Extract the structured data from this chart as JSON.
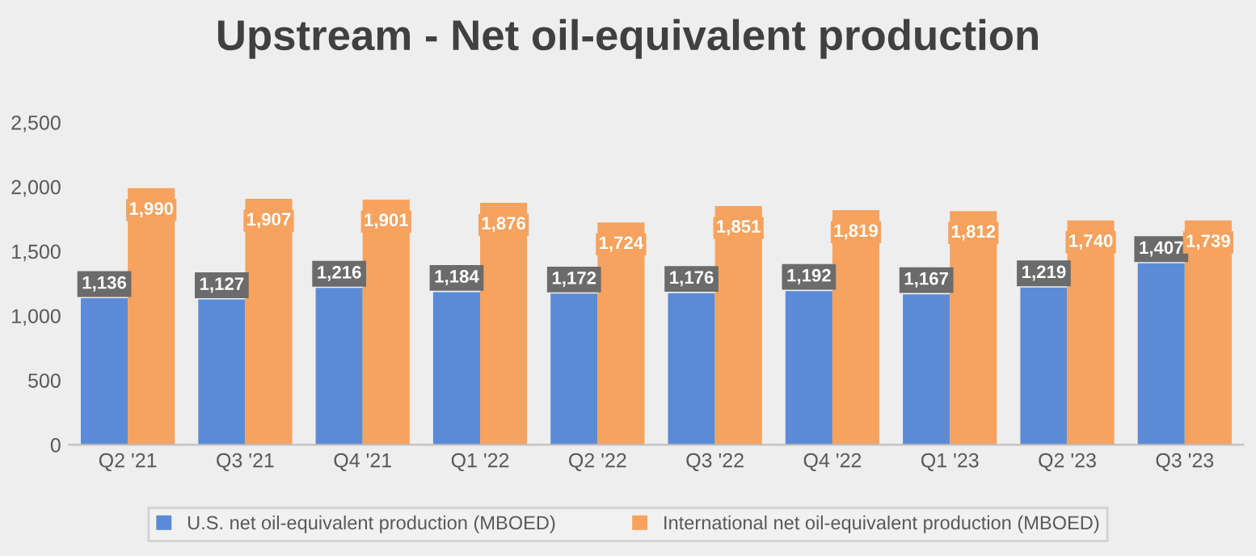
{
  "chart_data": {
    "type": "bar",
    "title": "Upstream - Net oil-equivalent production",
    "categories": [
      "Q2 '21",
      "Q3 '21",
      "Q4 '21",
      "Q1 '22",
      "Q2 '22",
      "Q3 '22",
      "Q4 '22",
      "Q1 '23",
      "Q2 '23",
      "Q3 '23"
    ],
    "series": [
      {
        "name": "U.S. net oil-equivalent production (MBOED)",
        "color": "#5b8bd6",
        "values": [
          1136,
          1127,
          1216,
          1184,
          1172,
          1176,
          1192,
          1167,
          1219,
          1407
        ],
        "value_labels": [
          "1,136",
          "1,127",
          "1,216",
          "1,184",
          "1,172",
          "1,176",
          "1,192",
          "1,167",
          "1,219",
          "1,407"
        ]
      },
      {
        "name": "International net oil-equivalent production (MBOED)",
        "color": "#f7a25e",
        "values": [
          1990,
          1907,
          1901,
          1876,
          1724,
          1851,
          1819,
          1812,
          1740,
          1739
        ],
        "value_labels": [
          "1,990",
          "1,907",
          "1,901",
          "1,876",
          "1,724",
          "1,851",
          "1,819",
          "1,812",
          "1,740",
          "1,739"
        ]
      }
    ],
    "ylim": [
      0,
      2500
    ],
    "yticks": [
      {
        "value": 0,
        "label": "0"
      },
      {
        "value": 500,
        "label": "500"
      },
      {
        "value": 1000,
        "label": "1,000"
      },
      {
        "value": 1500,
        "label": "1,500"
      },
      {
        "value": 2000,
        "label": "2,000"
      },
      {
        "value": 2500,
        "label": "2,500"
      }
    ],
    "grid": false,
    "legend": "bottom"
  }
}
